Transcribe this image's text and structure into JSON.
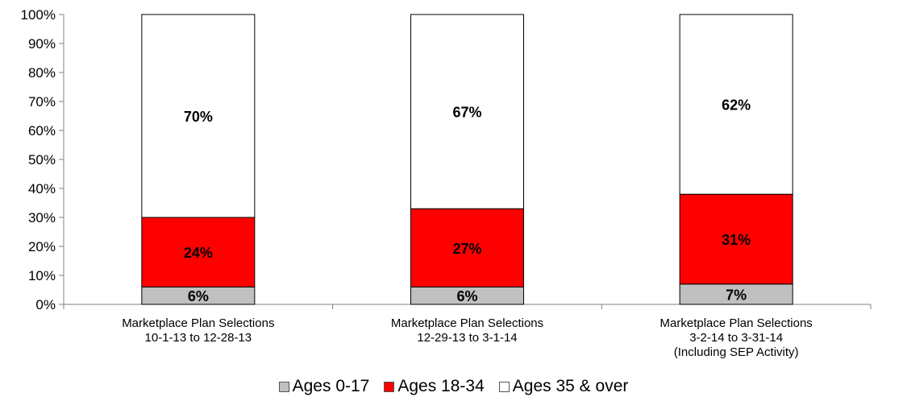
{
  "chart_data": {
    "type": "bar",
    "stacked": true,
    "percent": true,
    "categories": [
      [
        "Marketplace Plan Selections",
        "10-1-13 to 12-28-13"
      ],
      [
        "Marketplace Plan Selections",
        "12-29-13 to 3-1-14"
      ],
      [
        "Marketplace Plan Selections",
        "3-2-14 to 3-31-14",
        "(Including SEP Activity)"
      ]
    ],
    "series": [
      {
        "name": "Ages 0-17",
        "color": "#c0c0c0",
        "values": [
          6,
          6,
          7
        ],
        "labels": [
          "6%",
          "6%",
          "7%"
        ]
      },
      {
        "name": "Ages 18-34",
        "color": "#ff0000",
        "values": [
          24,
          27,
          31
        ],
        "labels": [
          "24%",
          "27%",
          "31%"
        ]
      },
      {
        "name": "Ages 35 & over",
        "color": "#ffffff",
        "values": [
          70,
          67,
          62
        ],
        "labels": [
          "70%",
          "67%",
          "62%"
        ]
      }
    ],
    "ylim": [
      0,
      100
    ],
    "yticks": [
      "0%",
      "10%",
      "20%",
      "30%",
      "40%",
      "50%",
      "60%",
      "70%",
      "80%",
      "90%",
      "100%"
    ],
    "grid": false,
    "legend_position": "bottom"
  }
}
